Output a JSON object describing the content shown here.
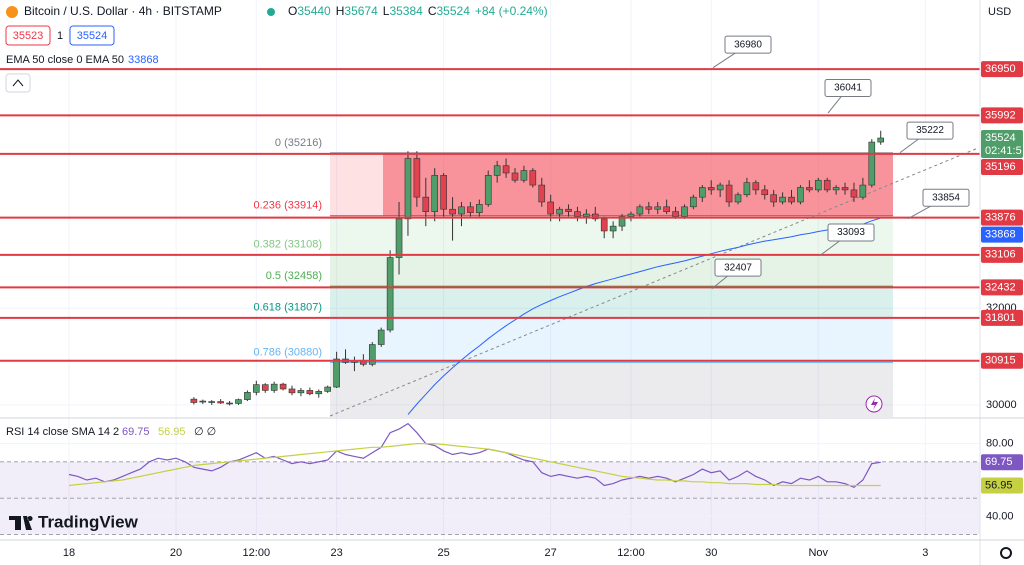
{
  "chart_data": {
    "type": "candlestick",
    "title": "Bitcoin / U.S. Dollar · 4h · BITSTAMP",
    "ohlc_keys": [
      "O",
      "H",
      "L",
      "C"
    ],
    "change": "+84 (+0.24%)",
    "bid": 35523,
    "spread": 1,
    "ask": 35524,
    "currency": "USD",
    "countdown": "02:41:5",
    "brand": "TradingView",
    "up_color": "#4f9d69",
    "down_color": "#e0424f",
    "ylim": [
      29750,
      38380
    ],
    "yticks": [
      30000,
      32000
    ],
    "grid": true,
    "categories": [
      "18",
      null,
      null,
      null,
      null,
      null,
      null,
      null,
      null,
      null,
      null,
      null,
      "20",
      null,
      null,
      null,
      null,
      null,
      null,
      null,
      null,
      "12:00",
      null,
      null,
      null,
      null,
      null,
      null,
      null,
      null,
      "23",
      null,
      null,
      null,
      null,
      null,
      null,
      null,
      null,
      null,
      null,
      null,
      "25",
      null,
      null,
      null,
      null,
      null,
      null,
      null,
      null,
      null,
      null,
      null,
      "27",
      null,
      null,
      null,
      null,
      null,
      null,
      null,
      null,
      "12:00",
      null,
      null,
      null,
      null,
      null,
      null,
      null,
      null,
      "30",
      null,
      null,
      null,
      null,
      null,
      null,
      null,
      null,
      null,
      null,
      null,
      "Nov",
      null,
      null,
      null,
      null,
      null,
      null,
      null,
      null,
      null,
      null,
      null,
      "3",
      null,
      null,
      null
    ],
    "open": [
      null,
      null,
      null,
      null,
      null,
      null,
      null,
      null,
      null,
      null,
      null,
      null,
      null,
      null,
      30120,
      30080,
      30060,
      30070,
      30040,
      30030,
      30110,
      30260,
      30420,
      30300,
      30430,
      30330,
      30250,
      30300,
      30230,
      30280,
      30370,
      30950,
      30880,
      30920,
      30840,
      31250,
      31550,
      33050,
      33850,
      35100,
      34300,
      34000,
      34750,
      34050,
      33950,
      34100,
      33980,
      34150,
      34750,
      34950,
      34800,
      34650,
      34850,
      34550,
      34200,
      33950,
      34050,
      34000,
      33900,
      33950,
      33850,
      33600,
      33700,
      33900,
      33950,
      34100,
      34050,
      34100,
      34000,
      33900,
      34100,
      34300,
      34500,
      34450,
      34550,
      34200,
      34350,
      34600,
      34450,
      34350,
      34200,
      34300,
      34200,
      34500,
      34450,
      34650,
      34450,
      34500,
      34450,
      34300,
      34550,
      35440,
      null,
      null,
      null,
      null,
      null,
      null,
      null,
      null
    ],
    "high": [
      null,
      null,
      null,
      null,
      null,
      null,
      null,
      null,
      null,
      null,
      null,
      null,
      null,
      null,
      30160,
      30110,
      30100,
      30120,
      30080,
      30130,
      30300,
      30500,
      30450,
      30480,
      30460,
      30400,
      30350,
      30360,
      30320,
      30400,
      31100,
      31150,
      31000,
      31050,
      31300,
      31600,
      33200,
      34200,
      35250,
      35250,
      34700,
      34900,
      34800,
      34300,
      34200,
      34200,
      34250,
      34850,
      35050,
      35100,
      34900,
      34950,
      34900,
      34700,
      34350,
      34100,
      34150,
      34100,
      34050,
      34100,
      33900,
      33800,
      33950,
      34000,
      34150,
      34200,
      34200,
      34250,
      34100,
      34150,
      34350,
      34550,
      34650,
      34600,
      34650,
      34400,
      34700,
      34650,
      34550,
      34450,
      34400,
      34450,
      34550,
      34650,
      34700,
      34700,
      34550,
      34600,
      34600,
      34700,
      35500,
      35674,
      null,
      null,
      null,
      null,
      null,
      null,
      null,
      null
    ],
    "low": [
      null,
      null,
      null,
      null,
      null,
      null,
      null,
      null,
      null,
      null,
      null,
      null,
      null,
      null,
      30010,
      30020,
      30000,
      30020,
      29990,
      30000,
      30080,
      30200,
      30250,
      30250,
      30300,
      30200,
      30180,
      30200,
      30150,
      30250,
      30350,
      30850,
      30700,
      30800,
      30800,
      31200,
      31500,
      32700,
      33500,
      34100,
      33700,
      33800,
      33900,
      33400,
      33700,
      33900,
      33900,
      34100,
      34600,
      34700,
      34600,
      34600,
      34500,
      34100,
      33800,
      33800,
      33900,
      33800,
      33750,
      33800,
      33450,
      33450,
      33600,
      33800,
      33900,
      33950,
      33950,
      33950,
      33850,
      33850,
      34050,
      34200,
      34350,
      34300,
      34100,
      34150,
      34300,
      34350,
      34250,
      34100,
      34150,
      34150,
      34150,
      34400,
      34400,
      34400,
      34350,
      34350,
      34200,
      34250,
      34500,
      35384,
      null,
      null,
      null,
      null,
      null,
      null,
      null,
      null
    ],
    "close": [
      null,
      null,
      null,
      null,
      null,
      null,
      null,
      null,
      null,
      null,
      null,
      null,
      null,
      null,
      30050,
      30060,
      30070,
      30040,
      30030,
      30110,
      30260,
      30420,
      30300,
      30430,
      30330,
      30250,
      30300,
      30230,
      30280,
      30370,
      30950,
      30880,
      30920,
      30840,
      31250,
      31550,
      33050,
      33850,
      35100,
      34300,
      34000,
      34750,
      34050,
      33950,
      34100,
      33980,
      34150,
      34750,
      34950,
      34800,
      34650,
      34850,
      34550,
      34200,
      33950,
      34050,
      34000,
      33900,
      33950,
      33850,
      33600,
      33700,
      33900,
      33950,
      34100,
      34050,
      34100,
      34000,
      33900,
      34100,
      34300,
      34500,
      34450,
      34550,
      34200,
      34350,
      34600,
      34450,
      34350,
      34200,
      34300,
      34200,
      34500,
      34450,
      34650,
      34450,
      34500,
      34450,
      34300,
      34550,
      35440,
      35524,
      null,
      null,
      null,
      null,
      null,
      null,
      null,
      null
    ],
    "ema": {
      "name": "EMA 50 close 0 EMA 50",
      "color": "#2962ff",
      "values": [
        null,
        null,
        null,
        null,
        null,
        null,
        null,
        null,
        null,
        null,
        null,
        null,
        null,
        null,
        null,
        null,
        null,
        null,
        null,
        null,
        null,
        null,
        null,
        null,
        null,
        null,
        null,
        null,
        null,
        null,
        null,
        null,
        null,
        null,
        null,
        null,
        null,
        null,
        29800,
        30020,
        30220,
        30420,
        30600,
        30770,
        30930,
        31080,
        31220,
        31370,
        31510,
        31640,
        31760,
        31880,
        31990,
        32080,
        32160,
        32240,
        32310,
        32380,
        32450,
        32510,
        32560,
        32610,
        32660,
        32710,
        32760,
        32810,
        32860,
        32900,
        32940,
        32980,
        33030,
        33080,
        33130,
        33180,
        33220,
        33260,
        33310,
        33350,
        33390,
        33420,
        33450,
        33480,
        33520,
        33550,
        33590,
        33620,
        33650,
        33680,
        33710,
        33740,
        33810,
        33868,
        null,
        null,
        null,
        null,
        null,
        null,
        null,
        null
      ]
    },
    "levels": {
      "color": "#e03a45",
      "values": [
        36950,
        35992,
        35196,
        33876,
        33106,
        32432,
        31801,
        30915
      ]
    },
    "callouts": [
      36980,
      36041,
      35222,
      33854,
      33093,
      32407
    ],
    "fib": [
      {
        "label": "0 (35216)",
        "value": 35216,
        "color": "#787b86"
      },
      {
        "label": "0.236 (33914)",
        "value": 33914,
        "color": "#f23645"
      },
      {
        "label": "0.382 (33108)",
        "value": 33108,
        "color": "#81c784"
      },
      {
        "label": "0.5 (32458)",
        "value": 32458,
        "color": "#4caf50"
      },
      {
        "label": "0.618 (31807)",
        "value": 31807,
        "color": "#089981"
      },
      {
        "label": "0.786 (30880)",
        "value": 30880,
        "color": "#64b5f6"
      }
    ],
    "box_color": "#f23645",
    "rsi": {
      "name": "RSI 14 close SMA 14 2",
      "extra": "∅ ∅",
      "ylim": [
        27,
        93
      ],
      "yticks": [
        {
          "value": 80,
          "label": "80.00"
        },
        {
          "value": 40,
          "label": "40.00"
        }
      ],
      "bands": [
        30,
        50,
        70
      ],
      "band_color": "#7e57c2",
      "series": [
        {
          "color": "#7e57c2",
          "values": [
            63,
            62,
            60,
            61,
            59,
            60,
            62,
            64,
            66,
            70,
            72,
            71,
            72,
            70,
            67,
            66,
            65,
            67,
            70,
            71,
            73,
            75,
            72,
            73,
            71,
            69,
            70,
            69,
            70,
            71,
            76,
            74,
            73,
            72,
            75,
            78,
            86,
            88,
            91,
            86,
            80,
            79,
            76,
            74,
            75,
            74,
            75,
            77,
            76,
            75,
            73,
            71,
            70,
            64,
            62,
            63,
            62,
            61,
            62,
            61,
            57,
            58,
            60,
            61,
            62,
            61,
            62,
            61,
            59,
            61,
            63,
            66,
            64,
            65,
            60,
            62,
            65,
            62,
            60,
            57,
            59,
            58,
            61,
            60,
            62,
            59,
            59,
            58,
            56,
            60,
            69,
            69.75,
            null,
            null,
            null,
            null,
            null,
            null,
            null,
            null
          ]
        },
        {
          "color": "#c5d143",
          "values": [
            57,
            57.5,
            58,
            58.5,
            59,
            59.5,
            60,
            61,
            62,
            63,
            64,
            65,
            66,
            67,
            68,
            68.5,
            69,
            69.5,
            70,
            70.5,
            71,
            71.5,
            72,
            72.5,
            73,
            73.5,
            74,
            74.5,
            75,
            75.5,
            76,
            76.5,
            77,
            77.5,
            78,
            78,
            78.5,
            79,
            79.5,
            80,
            80,
            80,
            79.5,
            79,
            78.5,
            78,
            77.5,
            77,
            76,
            75,
            74,
            73,
            72,
            71,
            70,
            69,
            68,
            67,
            66,
            65,
            64,
            63,
            62,
            61.5,
            61,
            60.5,
            60,
            60,
            59.5,
            59.5,
            59,
            59,
            58.5,
            58.5,
            58,
            58,
            58,
            57.5,
            57.5,
            57.5,
            57,
            57,
            57,
            57,
            57,
            57,
            57,
            57,
            57,
            57,
            57,
            56.95,
            null,
            null,
            null,
            null,
            null,
            null,
            null,
            null
          ]
        }
      ]
    }
  }
}
